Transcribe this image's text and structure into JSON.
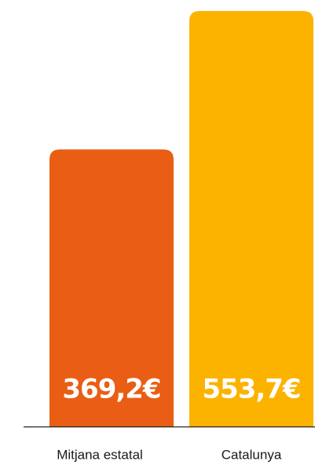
{
  "chart_data": {
    "type": "bar",
    "categories": [
      "Mitjana estatal",
      "Catalunya"
    ],
    "values": [
      369.2,
      553.7
    ],
    "value_labels": [
      "369,2€",
      "553,7€"
    ],
    "colors": [
      "#e95e14",
      "#fbb300"
    ]
  }
}
